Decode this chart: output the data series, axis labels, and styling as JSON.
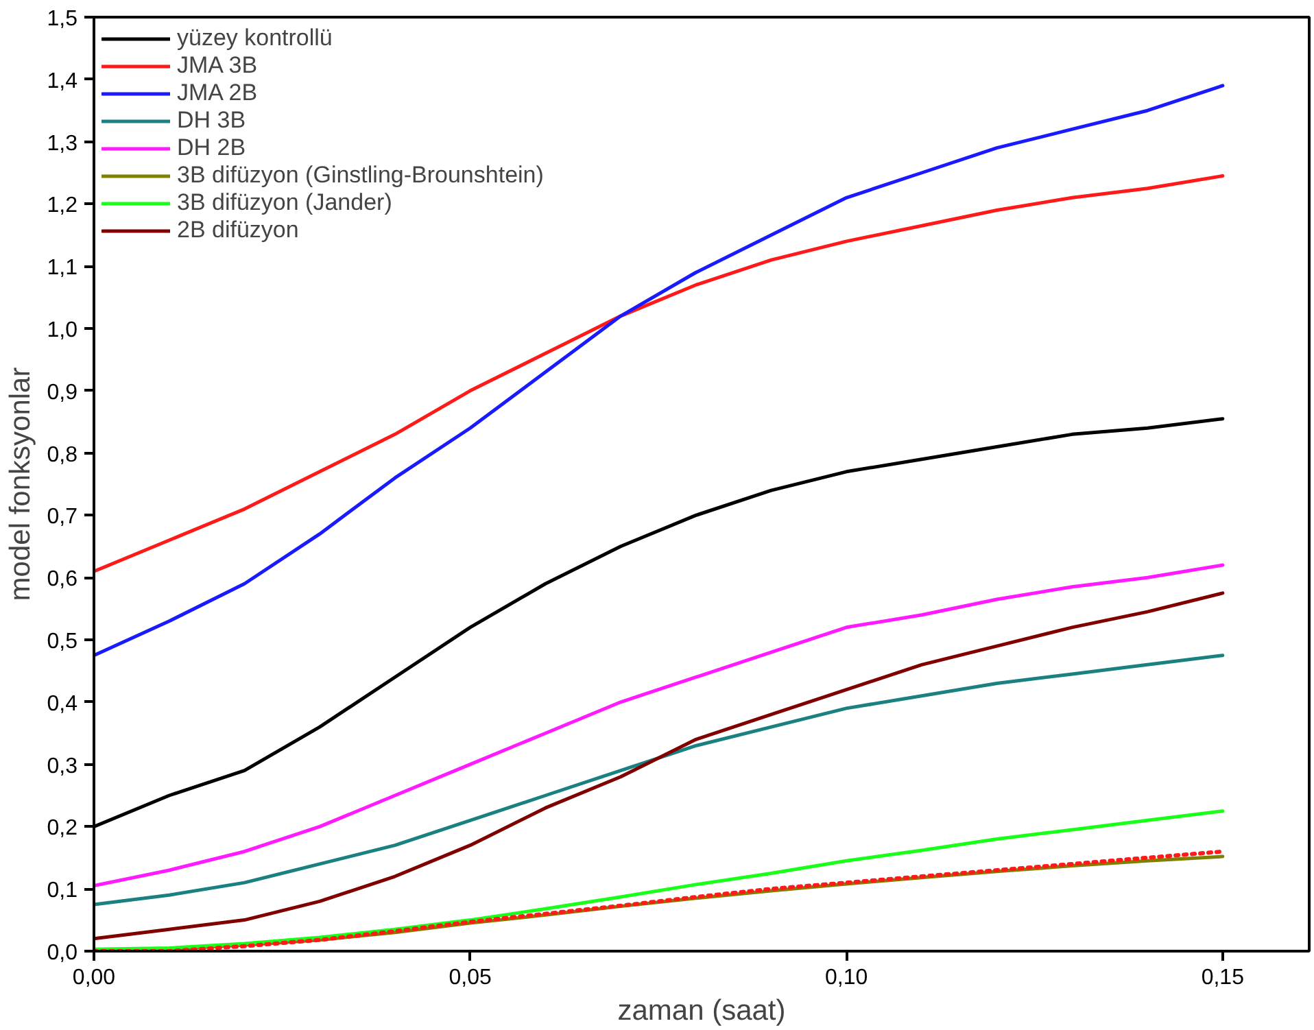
{
  "chart_data": {
    "type": "line",
    "xlabel": "zaman (saat)",
    "ylabel": "model fonksyonlar",
    "x": [
      0,
      0.01,
      0.02,
      0.03,
      0.04,
      0.05,
      0.06,
      0.07,
      0.08,
      0.09,
      0.1,
      0.11,
      0.12,
      0.13,
      0.14,
      0.15
    ],
    "series": [
      {
        "name": "yüzey kontrollü",
        "color": "#000000",
        "values": [
          0.2,
          0.25,
          0.29,
          0.36,
          0.44,
          0.52,
          0.59,
          0.65,
          0.7,
          0.74,
          0.77,
          0.79,
          0.81,
          0.83,
          0.84,
          0.855
        ]
      },
      {
        "name": "JMA 3B",
        "color": "#ff1a1a",
        "values": [
          0.61,
          0.66,
          0.71,
          0.77,
          0.83,
          0.9,
          0.96,
          1.02,
          1.07,
          1.11,
          1.14,
          1.165,
          1.19,
          1.21,
          1.225,
          1.245
        ]
      },
      {
        "name": "JMA 2B",
        "color": "#1a1aff",
        "values": [
          0.475,
          0.53,
          0.59,
          0.67,
          0.76,
          0.84,
          0.93,
          1.02,
          1.09,
          1.15,
          1.21,
          1.25,
          1.29,
          1.32,
          1.35,
          1.39
        ]
      },
      {
        "name": "DH 3B",
        "color": "#1a8080",
        "values": [
          0.075,
          0.09,
          0.11,
          0.14,
          0.17,
          0.21,
          0.25,
          0.29,
          0.33,
          0.36,
          0.39,
          0.41,
          0.43,
          0.445,
          0.46,
          0.475
        ]
      },
      {
        "name": "DH 2B",
        "color": "#ff1aff",
        "values": [
          0.105,
          0.13,
          0.16,
          0.2,
          0.25,
          0.3,
          0.35,
          0.4,
          0.44,
          0.48,
          0.52,
          0.54,
          0.565,
          0.585,
          0.6,
          0.62
        ]
      },
      {
        "name": "3B difüzyon (Ginstling-Brounshtein)",
        "color": "#808000",
        "values": [
          0.0,
          0.003,
          0.01,
          0.018,
          0.03,
          0.045,
          0.058,
          0.072,
          0.085,
          0.097,
          0.108,
          0.118,
          0.128,
          0.137,
          0.145,
          0.152
        ]
      },
      {
        "name": "3B difüzyon (Jander)",
        "color": "#1aff1a",
        "values": [
          0.003,
          0.005,
          0.012,
          0.022,
          0.035,
          0.05,
          0.068,
          0.087,
          0.107,
          0.125,
          0.145,
          0.162,
          0.18,
          0.195,
          0.21,
          0.225
        ]
      },
      {
        "name": "2B difüzyon",
        "color": "#800000",
        "values": [
          0.02,
          0.035,
          0.05,
          0.08,
          0.12,
          0.17,
          0.23,
          0.28,
          0.34,
          0.38,
          0.42,
          0.46,
          0.49,
          0.52,
          0.545,
          0.575
        ]
      },
      {
        "color": "#ff1a1a",
        "line_style": "dotted",
        "values": [
          0.0,
          0.0,
          0.008,
          0.018,
          0.032,
          0.047,
          0.06,
          0.073,
          0.087,
          0.1,
          0.11,
          0.12,
          0.13,
          0.14,
          0.15,
          0.16
        ]
      }
    ],
    "xlim": [
      0,
      0.1615
    ],
    "ylim": [
      0,
      1.5
    ],
    "xticks": [
      {
        "value": 0,
        "label": "0,00"
      },
      {
        "value": 0.05,
        "label": "0,05"
      },
      {
        "value": 0.1,
        "label": "0,10"
      },
      {
        "value": 0.15,
        "label": "0,15"
      }
    ],
    "yticks": [
      {
        "value": 0,
        "label": "0,0"
      },
      {
        "value": 0.1,
        "label": "0,1"
      },
      {
        "value": 0.2,
        "label": "0,2"
      },
      {
        "value": 0.3,
        "label": "0,3"
      },
      {
        "value": 0.4,
        "label": "0,4"
      },
      {
        "value": 0.5,
        "label": "0,5"
      },
      {
        "value": 0.6,
        "label": "0,6"
      },
      {
        "value": 0.7,
        "label": "0,7"
      },
      {
        "value": 0.8,
        "label": "0,8"
      },
      {
        "value": 0.9,
        "label": "0,9"
      },
      {
        "value": 1.0,
        "label": "1,0"
      },
      {
        "value": 1.1,
        "label": "1,1"
      },
      {
        "value": 1.2,
        "label": "1,2"
      },
      {
        "value": 1.3,
        "label": "1,3"
      },
      {
        "value": 1.4,
        "label": "1,4"
      },
      {
        "value": 1.5,
        "label": "1,5"
      }
    ],
    "grid": false,
    "legend": "top left",
    "marker": "none",
    "line_style": "solid"
  }
}
